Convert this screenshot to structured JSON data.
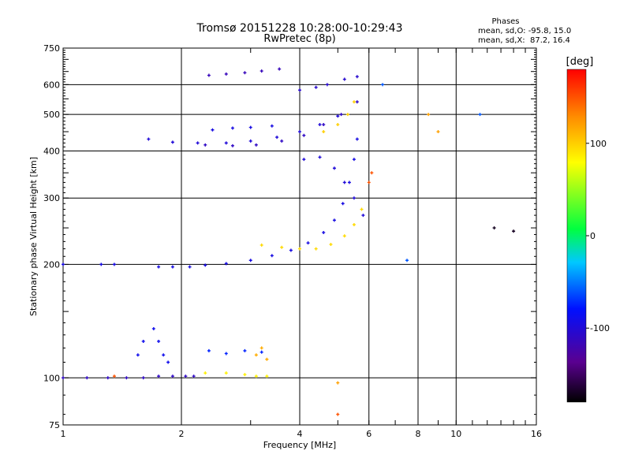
{
  "chart_data": {
    "type": "scatter",
    "title": "Tromsø 20151228 10:28:00-10:29:43",
    "subtitle": "RwPretec (8p)",
    "xlabel": "Frequency [MHz]",
    "ylabel": "Stationary phase Virtual Height [km]",
    "x_scale": "log",
    "y_scale": "log",
    "xlim": [
      1,
      16
    ],
    "ylim": [
      75,
      750
    ],
    "x_ticks": [
      "1",
      "2",
      "4",
      "6",
      "8",
      "10",
      "16"
    ],
    "y_ticks": [
      "750",
      "600",
      "500",
      "400",
      "300",
      "200",
      "100",
      "75"
    ],
    "grid": true,
    "phases_box": {
      "title": "Phases",
      "line_o": "mean, sd,O: -95.8, 15.0",
      "line_x": "mean, sd,X:  87.2, 16.4"
    },
    "colorbar": {
      "label": "[deg]",
      "range": [
        -180,
        180
      ],
      "ticks": [
        "100",
        "0",
        "-100"
      ],
      "tick_values": [
        100,
        0,
        -100
      ]
    },
    "series": [
      {
        "phase": -110,
        "points": [
          [
            1.0,
            100
          ],
          [
            1.15,
            100
          ],
          [
            1.3,
            100
          ],
          [
            1.45,
            100
          ],
          [
            1.6,
            100
          ],
          [
            1.75,
            101
          ],
          [
            1.9,
            101
          ],
          [
            2.05,
            101
          ],
          [
            2.15,
            101
          ]
        ]
      },
      {
        "phase": -95,
        "points": [
          [
            1.0,
            200
          ],
          [
            1.25,
            200
          ],
          [
            1.35,
            200
          ],
          [
            1.75,
            197
          ],
          [
            1.9,
            197
          ],
          [
            2.1,
            197
          ]
        ]
      },
      {
        "phase": -95,
        "points": [
          [
            2.3,
            199
          ],
          [
            2.6,
            201
          ],
          [
            3.0,
            205
          ],
          [
            3.4,
            211
          ],
          [
            3.8,
            218
          ],
          [
            4.2,
            228
          ],
          [
            4.6,
            243
          ],
          [
            4.9,
            262
          ],
          [
            5.15,
            290
          ],
          [
            5.35,
            330
          ],
          [
            5.5,
            380
          ],
          [
            5.6,
            430
          ]
        ]
      },
      {
        "phase": -100,
        "points": [
          [
            1.65,
            430
          ],
          [
            1.9,
            422
          ],
          [
            2.2,
            420
          ],
          [
            2.6,
            420
          ],
          [
            3.0,
            425
          ],
          [
            3.5,
            435
          ],
          [
            4.0,
            450
          ],
          [
            4.5,
            470
          ],
          [
            5.0,
            495
          ]
        ]
      },
      {
        "phase": -110,
        "points": [
          [
            2.3,
            415
          ],
          [
            2.7,
            413
          ],
          [
            3.1,
            415
          ],
          [
            3.6,
            425
          ],
          [
            4.1,
            440
          ],
          [
            4.6,
            470
          ],
          [
            5.1,
            500
          ],
          [
            5.6,
            540
          ]
        ]
      },
      {
        "phase": -115,
        "points": [
          [
            2.35,
            635
          ],
          [
            2.6,
            640
          ],
          [
            2.9,
            645
          ],
          [
            3.2,
            652
          ],
          [
            3.55,
            660
          ]
        ]
      },
      {
        "phase": -95,
        "points": [
          [
            2.4,
            455
          ],
          [
            2.7,
            460
          ],
          [
            3.0,
            462
          ],
          [
            3.4,
            466
          ]
        ]
      },
      {
        "phase": -105,
        "points": [
          [
            4.0,
            580
          ],
          [
            4.4,
            590
          ],
          [
            4.7,
            600
          ],
          [
            5.2,
            620
          ],
          [
            5.6,
            630
          ]
        ]
      },
      {
        "phase": -100,
        "points": [
          [
            4.1,
            380
          ],
          [
            4.5,
            385
          ],
          [
            4.9,
            360
          ],
          [
            5.2,
            330
          ],
          [
            5.5,
            300
          ],
          [
            5.8,
            270
          ]
        ]
      },
      {
        "phase": -90,
        "points": [
          [
            1.55,
            115
          ],
          [
            1.6,
            125
          ],
          [
            1.7,
            135
          ],
          [
            1.75,
            125
          ],
          [
            1.8,
            115
          ],
          [
            1.85,
            110
          ]
        ]
      },
      {
        "phase": -75,
        "points": [
          [
            2.35,
            118
          ],
          [
            2.6,
            116
          ],
          [
            2.9,
            118
          ],
          [
            3.2,
            117
          ]
        ]
      },
      {
        "phase": 85,
        "points": [
          [
            2.3,
            103
          ],
          [
            2.6,
            103
          ],
          [
            2.9,
            102
          ],
          [
            3.1,
            101
          ],
          [
            3.3,
            101
          ]
        ]
      },
      {
        "phase": 95,
        "points": [
          [
            3.2,
            225
          ],
          [
            3.6,
            222
          ],
          [
            4.0,
            220
          ],
          [
            4.4,
            220
          ],
          [
            4.8,
            226
          ],
          [
            5.2,
            238
          ],
          [
            5.5,
            255
          ],
          [
            5.75,
            280
          ]
        ]
      },
      {
        "phase": 100,
        "points": [
          [
            4.6,
            450
          ],
          [
            5.0,
            470
          ],
          [
            5.3,
            500
          ],
          [
            5.5,
            540
          ]
        ]
      },
      {
        "phase": 115,
        "points": [
          [
            3.1,
            115
          ],
          [
            3.2,
            120
          ],
          [
            3.3,
            112
          ]
        ]
      },
      {
        "phase": 150,
        "points": [
          [
            1.35,
            101
          ],
          [
            5.0,
            80
          ],
          [
            6.0,
            330
          ],
          [
            6.1,
            350
          ]
        ]
      },
      {
        "phase": 120,
        "points": [
          [
            5.0,
            97
          ],
          [
            8.5,
            500
          ],
          [
            9.0,
            450
          ]
        ]
      },
      {
        "phase": -60,
        "points": [
          [
            7.5,
            205
          ],
          [
            6.5,
            600
          ],
          [
            11.5,
            500
          ]
        ]
      },
      {
        "phase": -170,
        "points": [
          [
            12.5,
            250
          ],
          [
            14.0,
            245
          ]
        ]
      }
    ]
  }
}
